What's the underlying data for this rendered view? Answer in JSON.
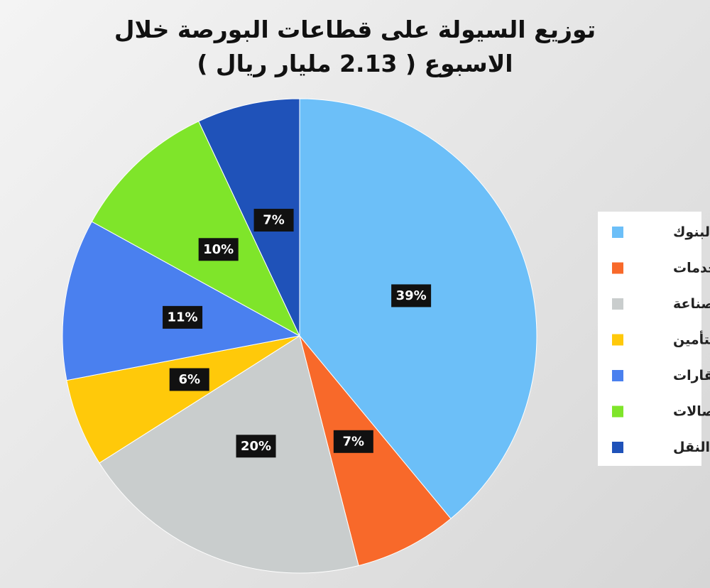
{
  "chart_data": {
    "type": "pie",
    "title": "توزيع السيولة على قطاعات البورصة خلال الاسبوع ( 2.13 مليار ريال )",
    "categories": [
      "البنوك",
      "الخدمات",
      "الصناعة",
      "التأمين",
      "العقارات",
      "الاتصالات",
      "النقل"
    ],
    "values": [
      39,
      7,
      20,
      6,
      11,
      10,
      7
    ],
    "value_labels": [
      "39%",
      "7%",
      "20%",
      "6%",
      "11%",
      "10%",
      "7%"
    ],
    "colors": [
      "#6cbff8",
      "#f8692a",
      "#c9cdcd",
      "#ffc90a",
      "#4a80ef",
      "#7fe52a",
      "#1f52b9"
    ],
    "legend": "right"
  }
}
